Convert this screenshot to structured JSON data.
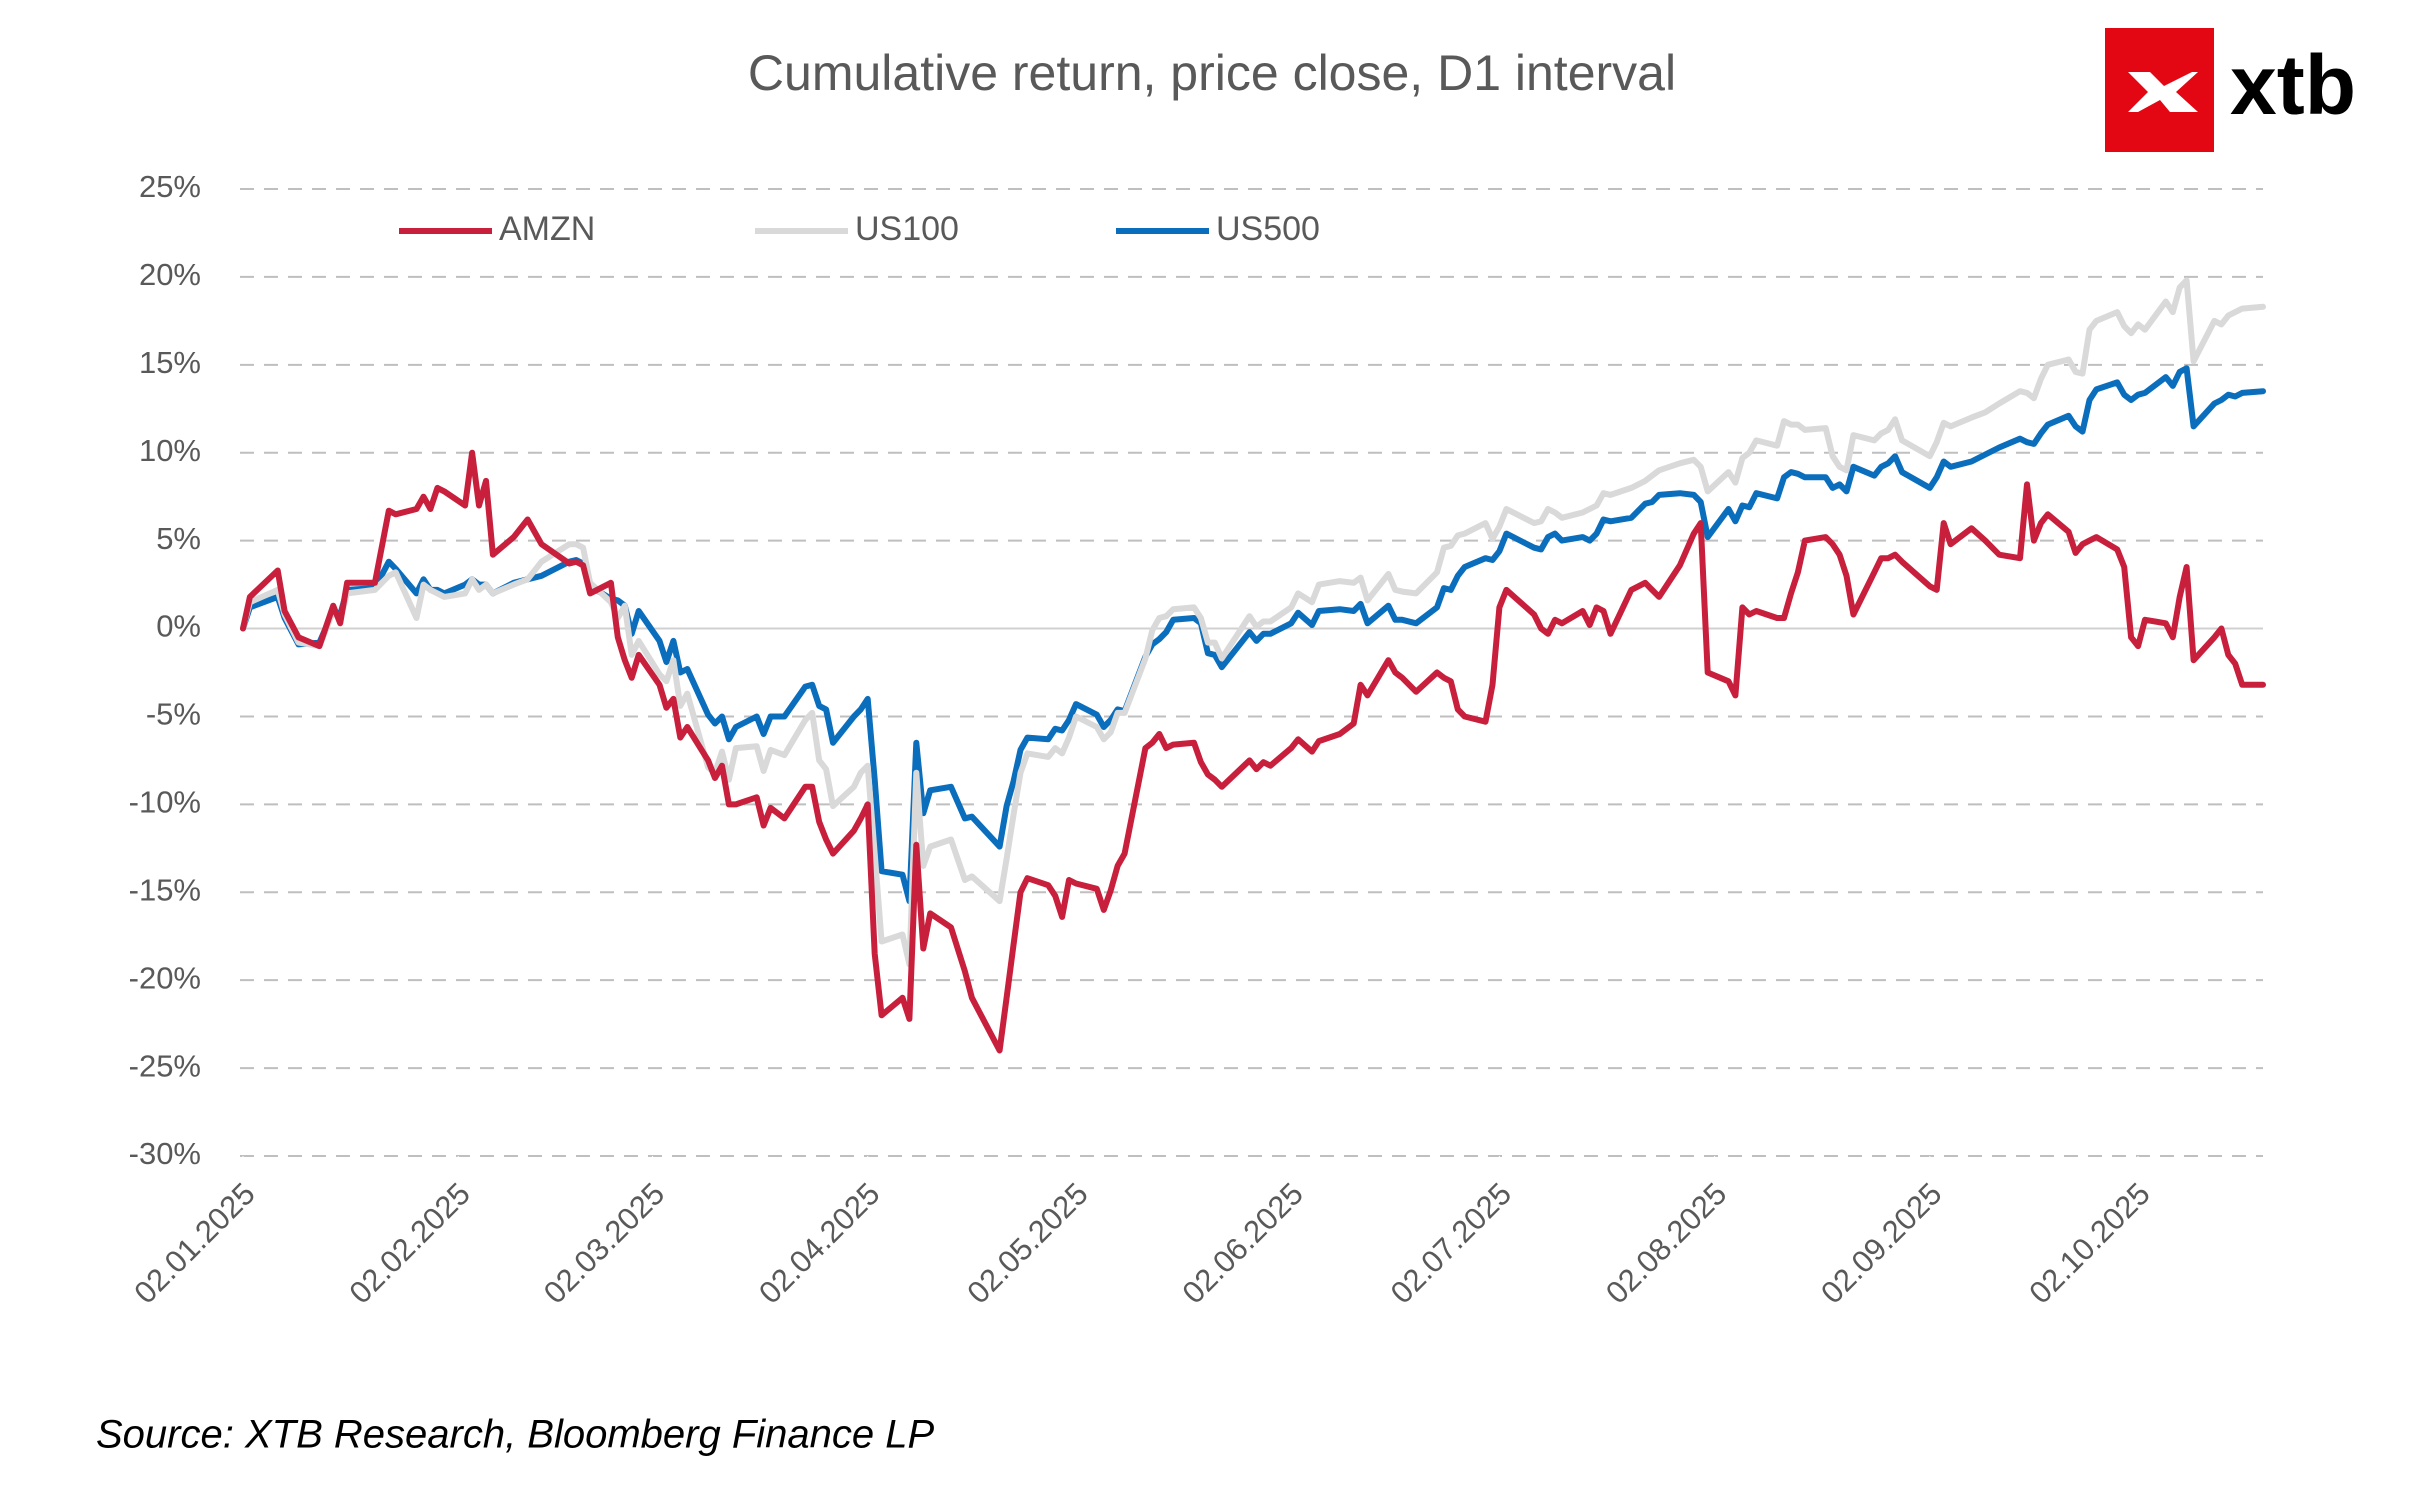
{
  "chart_data": {
    "type": "line",
    "title": "Cumulative return, price close, D1 interval",
    "source": "Source: XTB Research, Bloomberg Finance LP",
    "logo": "xtb",
    "x": [
      "02.01.2025",
      "03.01.2025",
      "07.01.2025",
      "08.01.2025",
      "10.01.2025",
      "13.01.2025",
      "15.01.2025",
      "16.01.2025",
      "17.01.2025",
      "21.01.2025",
      "23.01.2025",
      "24.01.2025",
      "27.01.2025",
      "28.01.2025",
      "29.01.2025",
      "30.01.2025",
      "31.01.2025",
      "03.02.2025",
      "04.02.2025",
      "05.02.2025",
      "06.02.2025",
      "07.02.2025",
      "10.02.2025",
      "12.02.2025",
      "14.02.2025",
      "18.02.2025",
      "19.02.2025",
      "20.02.2025",
      "21.02.2025",
      "24.02.2025",
      "25.02.2025",
      "26.02.2025",
      "27.02.2025",
      "28.02.2025",
      "03.03.2025",
      "04.03.2025",
      "05.03.2025",
      "06.03.2025",
      "07.03.2025",
      "10.03.2025",
      "11.03.2025",
      "12.03.2025",
      "13.03.2025",
      "14.03.2025",
      "17.03.2025",
      "18.03.2025",
      "19.03.2025",
      "21.03.2025",
      "24.03.2025",
      "25.03.2025",
      "26.03.2025",
      "27.03.2025",
      "28.03.2025",
      "31.03.2025",
      "01.04.2025",
      "02.04.2025",
      "03.04.2025",
      "04.04.2025",
      "07.04.2025",
      "08.04.2025",
      "09.04.2025",
      "10.04.2025",
      "11.04.2025",
      "14.04.2025",
      "16.04.2025",
      "17.04.2025",
      "21.04.2025",
      "22.04.2025",
      "23.04.2025",
      "24.04.2025",
      "25.04.2025",
      "28.04.2025",
      "29.04.2025",
      "30.04.2025",
      "01.05.2025",
      "02.05.2025",
      "05.05.2025",
      "06.05.2025",
      "07.05.2025",
      "08.05.2025",
      "09.05.2025",
      "12.05.2025",
      "13.05.2025",
      "14.05.2025",
      "15.05.2025",
      "16.05.2025",
      "19.05.2025",
      "20.05.2025",
      "21.05.2025",
      "22.05.2025",
      "23.05.2025",
      "27.05.2025",
      "28.05.2025",
      "29.05.2025",
      "30.05.2025",
      "02.06.2025",
      "03.06.2025",
      "05.06.2025",
      "06.06.2025",
      "09.06.2025",
      "11.06.2025",
      "12.06.2025",
      "13.06.2025",
      "16.06.2025",
      "17.06.2025",
      "18.06.2025",
      "20.06.2025",
      "23.06.2025",
      "24.06.2025",
      "25.06.2025",
      "26.06.2025",
      "27.06.2025",
      "30.06.2025",
      "01.07.2025",
      "02.07.2025",
      "03.07.2025",
      "07.07.2025",
      "08.07.2025",
      "09.07.2025",
      "10.07.2025",
      "11.07.2025",
      "14.07.2025",
      "15.07.2025",
      "16.07.2025",
      "17.07.2025",
      "18.07.2025",
      "21.07.2025",
      "23.07.2025",
      "24.07.2025",
      "25.07.2025",
      "28.07.2025",
      "30.07.2025",
      "31.07.2025",
      "01.08.2025",
      "04.08.2025",
      "05.08.2025",
      "06.08.2025",
      "07.08.2025",
      "08.08.2025",
      "11.08.2025",
      "12.08.2025",
      "13.08.2025",
      "14.08.2025",
      "15.08.2025",
      "18.08.2025",
      "19.08.2025",
      "20.08.2025",
      "21.08.2025",
      "22.08.2025",
      "25.08.2025",
      "26.08.2025",
      "27.08.2025",
      "28.08.2025",
      "29.08.2025",
      "02.09.2025",
      "03.09.2025",
      "04.09.2025",
      "05.09.2025",
      "08.09.2025",
      "10.09.2025",
      "12.09.2025",
      "15.09.2025",
      "16.09.2025",
      "17.09.2025",
      "18.09.2025",
      "19.09.2025",
      "22.09.2025",
      "23.09.2025",
      "24.09.2025",
      "25.09.2025",
      "26.09.2025",
      "29.09.2025",
      "30.09.2025",
      "01.10.2025",
      "02.10.2025",
      "03.10.2025",
      "06.10.2025",
      "07.10.2025",
      "08.10.2025",
      "09.10.2025",
      "10.10.2025",
      "13.10.2025",
      "14.10.2025",
      "15.10.2025",
      "16.10.2025",
      "17.10.2025",
      "20.10.2025"
    ],
    "series": [
      {
        "name": "AMZN",
        "color": "#c8203c",
        "values": [
          0,
          1.8,
          3.3,
          1.0,
          -0.5,
          -1.0,
          1.3,
          0.3,
          2.6,
          2.6,
          6.7,
          6.5,
          6.8,
          7.5,
          6.8,
          8.0,
          7.8,
          7.0,
          10.0,
          7.0,
          8.4,
          4.2,
          5.2,
          6.2,
          4.8,
          3.7,
          3.8,
          3.6,
          2.0,
          2.6,
          -0.5,
          -1.8,
          -2.8,
          -1.5,
          -3.2,
          -4.5,
          -4.0,
          -6.2,
          -5.6,
          -7.5,
          -8.5,
          -7.8,
          -10.0,
          -10.0,
          -9.6,
          -11.2,
          -10.2,
          -10.8,
          -9.0,
          -9.0,
          -11.0,
          -12.0,
          -12.8,
          -11.5,
          -10.8,
          -10.0,
          -18.5,
          -22.0,
          -21.0,
          -22.2,
          -12.3,
          -18.2,
          -16.2,
          -17.0,
          -19.5,
          -21.0,
          -24.0,
          -21.0,
          -18.0,
          -15.0,
          -14.2,
          -14.6,
          -15.2,
          -16.4,
          -14.3,
          -14.5,
          -14.8,
          -16.0,
          -14.9,
          -13.5,
          -12.8,
          -6.8,
          -6.5,
          -6.0,
          -6.8,
          -6.6,
          -6.5,
          -7.6,
          -8.3,
          -8.6,
          -9.0,
          -7.5,
          -8.0,
          -7.6,
          -7.8,
          -6.8,
          -6.3,
          -7.0,
          -6.4,
          -6.0,
          -5.4,
          -3.2,
          -3.8,
          -1.8,
          -2.5,
          -2.8,
          -3.6,
          -2.5,
          -2.8,
          -3.0,
          -4.6,
          -5.0,
          -5.3,
          -3.2,
          1.2,
          2.2,
          0.8,
          0.0,
          -0.3,
          0.5,
          0.3,
          1.0,
          0.2,
          1.2,
          1.0,
          -0.3,
          2.2,
          2.6,
          2.2,
          1.8,
          3.6,
          5.4,
          6.0,
          -2.5,
          -3.0,
          -3.8,
          1.2,
          0.8,
          1.0,
          0.6,
          0.6,
          2.0,
          3.2,
          5.0,
          5.2,
          4.8,
          4.2,
          3.0,
          0.8,
          3.2,
          4.0,
          4.0,
          4.2,
          3.8,
          2.4,
          2.2,
          6.0,
          4.8,
          5.7,
          5.0,
          4.2,
          4.0,
          8.2,
          5.0,
          6.0,
          6.5,
          5.5,
          4.3,
          4.8,
          5.0,
          5.2,
          4.5,
          3.5,
          -0.5,
          -1.0,
          0.5,
          0.3,
          -0.5,
          1.8,
          3.5,
          -1.8,
          -0.5,
          0.0,
          -1.5,
          -2.0,
          -3.2,
          -3.2
        ]
      },
      {
        "name": "US100",
        "color": "#d9d9d9",
        "values": [
          0,
          1.5,
          2.2,
          0.8,
          -0.8,
          -1.0,
          1.0,
          0.5,
          2.0,
          2.2,
          3.0,
          3.2,
          0.6,
          2.5,
          2.2,
          2.0,
          1.8,
          2.0,
          2.8,
          2.2,
          2.5,
          2.0,
          2.5,
          2.8,
          3.8,
          4.8,
          4.8,
          4.6,
          2.6,
          1.5,
          0.6,
          1.3,
          -1.5,
          -0.7,
          -2.6,
          -3.0,
          -1.8,
          -4.4,
          -3.7,
          -7.9,
          -8.2,
          -7.0,
          -8.6,
          -6.8,
          -6.7,
          -8.1,
          -6.9,
          -7.2,
          -5.2,
          -4.8,
          -7.5,
          -8.0,
          -10.1,
          -9.0,
          -8.2,
          -7.8,
          -12.8,
          -17.8,
          -17.4,
          -19.1,
          -8.2,
          -13.5,
          -12.4,
          -12.0,
          -14.3,
          -14.1,
          -15.5,
          -13.1,
          -10.6,
          -8.2,
          -7.1,
          -7.3,
          -6.8,
          -7.1,
          -6.2,
          -5.0,
          -5.6,
          -6.3,
          -5.9,
          -4.8,
          -4.8,
          -1.7,
          -0.1,
          0.6,
          0.7,
          1.1,
          1.2,
          0.6,
          -0.8,
          -0.8,
          -1.7,
          0.7,
          0.1,
          0.4,
          0.4,
          1.2,
          2.0,
          1.5,
          2.5,
          2.7,
          2.6,
          2.9,
          1.6,
          3.1,
          2.2,
          2.1,
          2.0,
          3.2,
          4.6,
          4.7,
          5.3,
          5.4,
          6.0,
          5.1,
          5.8,
          6.8,
          6.0,
          6.1,
          6.8,
          6.6,
          6.3,
          6.6,
          6.8,
          7.0,
          7.7,
          7.6,
          8.0,
          8.4,
          8.7,
          9.0,
          9.4,
          9.6,
          9.2,
          7.8,
          8.9,
          8.3,
          9.7,
          10.0,
          10.7,
          10.4,
          11.8,
          11.6,
          11.6,
          11.3,
          11.4,
          9.8,
          9.2,
          9.0,
          11.0,
          10.7,
          11.1,
          11.3,
          11.9,
          10.7,
          9.8,
          10.6,
          11.7,
          11.5,
          12.0,
          12.3,
          12.8,
          13.5,
          13.4,
          13.1,
          14.2,
          15.0,
          15.3,
          14.6,
          14.5,
          17.0,
          17.5,
          18.0,
          17.2,
          16.8,
          17.3,
          17.0,
          18.6,
          18.0,
          19.4,
          19.8,
          15.2,
          17.5,
          17.3,
          17.8,
          18.0,
          18.2,
          18.3
        ]
      },
      {
        "name": "US500",
        "color": "#0a6ebd",
        "values": [
          0,
          1.2,
          1.8,
          0.6,
          -0.9,
          -0.8,
          1.0,
          0.8,
          2.2,
          2.3,
          3.8,
          3.4,
          2.0,
          2.8,
          2.2,
          2.2,
          2.0,
          2.5,
          2.8,
          2.5,
          2.5,
          2.0,
          2.6,
          2.8,
          3.0,
          3.8,
          3.9,
          3.7,
          2.4,
          1.7,
          1.6,
          1.3,
          -0.3,
          1.0,
          -0.7,
          -1.9,
          -0.7,
          -2.5,
          -2.3,
          -4.9,
          -5.4,
          -5.0,
          -6.3,
          -5.6,
          -5.0,
          -6.0,
          -5.0,
          -5.0,
          -3.3,
          -3.2,
          -4.4,
          -4.6,
          -6.5,
          -5.0,
          -4.6,
          -4.0,
          -8.6,
          -13.8,
          -14.0,
          -15.5,
          -6.5,
          -10.5,
          -9.2,
          -9.0,
          -10.8,
          -10.7,
          -12.4,
          -10.1,
          -8.7,
          -6.9,
          -6.2,
          -6.3,
          -5.7,
          -5.8,
          -5.2,
          -4.3,
          -4.9,
          -5.6,
          -5.2,
          -4.6,
          -4.7,
          -1.6,
          -0.9,
          -0.6,
          -0.2,
          0.5,
          0.6,
          0.3,
          -1.4,
          -1.5,
          -2.2,
          -0.2,
          -0.7,
          -0.3,
          -0.3,
          0.3,
          0.9,
          0.2,
          1.0,
          1.1,
          1.0,
          1.4,
          0.3,
          1.3,
          0.5,
          0.5,
          0.3,
          1.2,
          2.3,
          2.2,
          3.0,
          3.5,
          4.0,
          3.9,
          4.4,
          5.4,
          4.6,
          4.5,
          5.2,
          5.4,
          5.0,
          5.2,
          5.0,
          5.4,
          6.2,
          6.1,
          6.3,
          7.1,
          7.2,
          7.6,
          7.7,
          7.6,
          7.2,
          5.2,
          6.8,
          6.1,
          7.0,
          6.9,
          7.7,
          7.4,
          8.6,
          8.9,
          8.8,
          8.6,
          8.6,
          8.0,
          8.2,
          7.8,
          9.2,
          8.7,
          9.2,
          9.4,
          9.8,
          8.9,
          8.0,
          8.6,
          9.5,
          9.2,
          9.5,
          9.9,
          10.3,
          10.8,
          10.6,
          10.5,
          11.1,
          11.6,
          12.1,
          11.5,
          11.2,
          13.0,
          13.6,
          14.0,
          13.3,
          13.0,
          13.3,
          13.4,
          14.3,
          13.8,
          14.6,
          14.8,
          11.5,
          12.8,
          13.0,
          13.3,
          13.2,
          13.4,
          13.5
        ]
      }
    ],
    "xlim": [
      "02.01.2025",
      "20.10.2025"
    ],
    "xticks": [
      "02.01.2025",
      "02.02.2025",
      "02.03.2025",
      "02.04.2025",
      "02.05.2025",
      "02.06.2025",
      "02.07.2025",
      "02.08.2025",
      "02.09.2025",
      "02.10.2025"
    ],
    "ylim": [
      -30,
      25
    ],
    "yticks": [
      {
        "value": -30,
        "label": "-30%"
      },
      {
        "value": -25,
        "label": "-25%"
      },
      {
        "value": -20,
        "label": "-20%"
      },
      {
        "value": -15,
        "label": "-15%"
      },
      {
        "value": -10,
        "label": "-10%"
      },
      {
        "value": -5,
        "label": "-5%"
      },
      {
        "value": 0,
        "label": "0%"
      },
      {
        "value": 5,
        "label": "5%"
      },
      {
        "value": 10,
        "label": "10%"
      },
      {
        "value": 15,
        "label": "15%"
      },
      {
        "value": 20,
        "label": "20%"
      },
      {
        "value": 25,
        "label": "25%"
      }
    ],
    "grid": true
  }
}
